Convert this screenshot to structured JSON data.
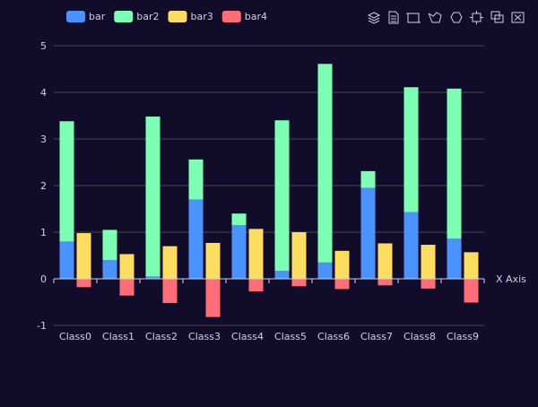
{
  "chart_data": {
    "type": "bar",
    "categories": [
      "Class0",
      "Class1",
      "Class2",
      "Class3",
      "Class4",
      "Class5",
      "Class6",
      "Class7",
      "Class8",
      "Class9"
    ],
    "xlabel": "X Axis",
    "ylabel": "",
    "ylim": [
      -1,
      5
    ],
    "y_ticks": [
      -1,
      0,
      1,
      2,
      3,
      4,
      5
    ],
    "grid": true,
    "legend_position": "top-left",
    "stacks": [
      {
        "stack": "one",
        "series": [
          "bar",
          "bar2"
        ]
      },
      {
        "stack": "two",
        "series": [
          "bar3",
          "bar4"
        ]
      }
    ],
    "series": [
      {
        "name": "bar",
        "color": "#4992ff",
        "stack": "one",
        "values": [
          0.8,
          0.4,
          0.05,
          1.7,
          1.15,
          0.17,
          0.35,
          1.95,
          1.43,
          0.86
        ]
      },
      {
        "name": "bar2",
        "color": "#7cffb2",
        "stack": "one",
        "values": [
          2.58,
          0.65,
          3.43,
          0.86,
          0.25,
          3.23,
          4.26,
          0.36,
          2.68,
          3.22
        ]
      },
      {
        "name": "bar3",
        "color": "#fddd60",
        "stack": "two",
        "values": [
          0.98,
          0.53,
          0.7,
          0.77,
          1.07,
          1.0,
          0.6,
          0.76,
          0.73,
          0.57
        ]
      },
      {
        "name": "bar4",
        "color": "#ff6e76",
        "stack": "two",
        "values": [
          -0.18,
          -0.36,
          -0.52,
          -0.82,
          -0.27,
          -0.16,
          -0.22,
          -0.14,
          -0.21,
          -0.51
        ]
      }
    ]
  },
  "toolbox": {
    "icons": [
      "mark-icon",
      "data-view-icon",
      "zoom-icon",
      "lasso-icon",
      "brush-rect-icon",
      "brush-polygon-icon",
      "keep-selection-icon",
      "clear-selection-icon"
    ]
  }
}
